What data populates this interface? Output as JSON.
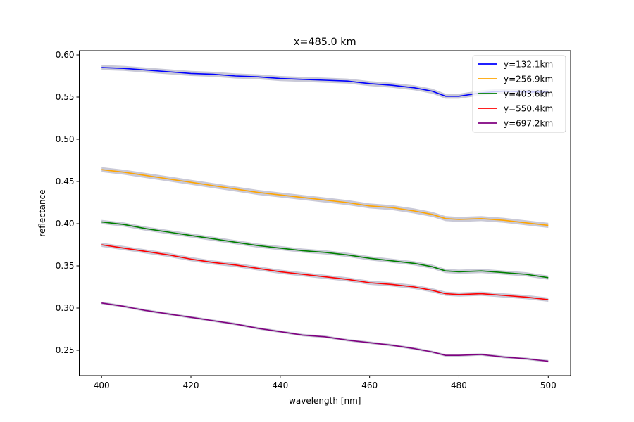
{
  "chart_data": {
    "type": "line",
    "title": "x=485.0 km",
    "xlabel": "wavelength [nm]",
    "ylabel": "reflectance",
    "xlim": [
      395,
      505
    ],
    "ylim": [
      0.22,
      0.605
    ],
    "xticks": [
      400,
      420,
      440,
      460,
      480,
      500
    ],
    "xtick_labels": [
      "400",
      "420",
      "440",
      "460",
      "480",
      "500"
    ],
    "yticks": [
      0.25,
      0.3,
      0.35,
      0.4,
      0.45,
      0.5,
      0.55,
      0.6
    ],
    "ytick_labels": [
      "0.25",
      "0.30",
      "0.35",
      "0.40",
      "0.45",
      "0.50",
      "0.55",
      "0.60"
    ],
    "grid": false,
    "legend_position": "top-right",
    "uncertainty_band_color": "#c0c0d0",
    "x": [
      400,
      405,
      410,
      415,
      420,
      425,
      430,
      435,
      440,
      445,
      450,
      455,
      460,
      465,
      470,
      474,
      477,
      480,
      485,
      490,
      495,
      500
    ],
    "series": [
      {
        "name": "y=132.1km",
        "color": "#0000ff",
        "band": 0.003,
        "values": [
          0.585,
          0.584,
          0.582,
          0.58,
          0.578,
          0.577,
          0.575,
          0.574,
          0.572,
          0.571,
          0.57,
          0.569,
          0.566,
          0.564,
          0.561,
          0.557,
          0.551,
          0.551,
          0.555,
          0.557,
          0.556,
          0.556
        ]
      },
      {
        "name": "y=256.9km",
        "color": "#ffa500",
        "band": 0.003,
        "values": [
          0.464,
          0.461,
          0.457,
          0.453,
          0.449,
          0.445,
          0.441,
          0.437,
          0.434,
          0.431,
          0.428,
          0.425,
          0.421,
          0.419,
          0.415,
          0.411,
          0.406,
          0.405,
          0.406,
          0.404,
          0.401,
          0.398
        ]
      },
      {
        "name": "y=403.6km",
        "color": "#008000",
        "band": 0.0025,
        "values": [
          0.402,
          0.399,
          0.394,
          0.39,
          0.386,
          0.382,
          0.378,
          0.374,
          0.371,
          0.368,
          0.366,
          0.363,
          0.359,
          0.356,
          0.353,
          0.349,
          0.344,
          0.343,
          0.344,
          0.342,
          0.34,
          0.336
        ]
      },
      {
        "name": "y=550.4km",
        "color": "#ff0000",
        "band": 0.0025,
        "values": [
          0.375,
          0.371,
          0.367,
          0.363,
          0.358,
          0.354,
          0.351,
          0.347,
          0.343,
          0.34,
          0.337,
          0.334,
          0.33,
          0.328,
          0.325,
          0.321,
          0.317,
          0.316,
          0.317,
          0.315,
          0.313,
          0.31
        ]
      },
      {
        "name": "y=697.2km",
        "color": "#800080",
        "band": 0.0015,
        "values": [
          0.306,
          0.302,
          0.297,
          0.293,
          0.289,
          0.285,
          0.281,
          0.276,
          0.272,
          0.268,
          0.266,
          0.262,
          0.259,
          0.256,
          0.252,
          0.248,
          0.244,
          0.244,
          0.245,
          0.242,
          0.24,
          0.237
        ]
      }
    ]
  }
}
